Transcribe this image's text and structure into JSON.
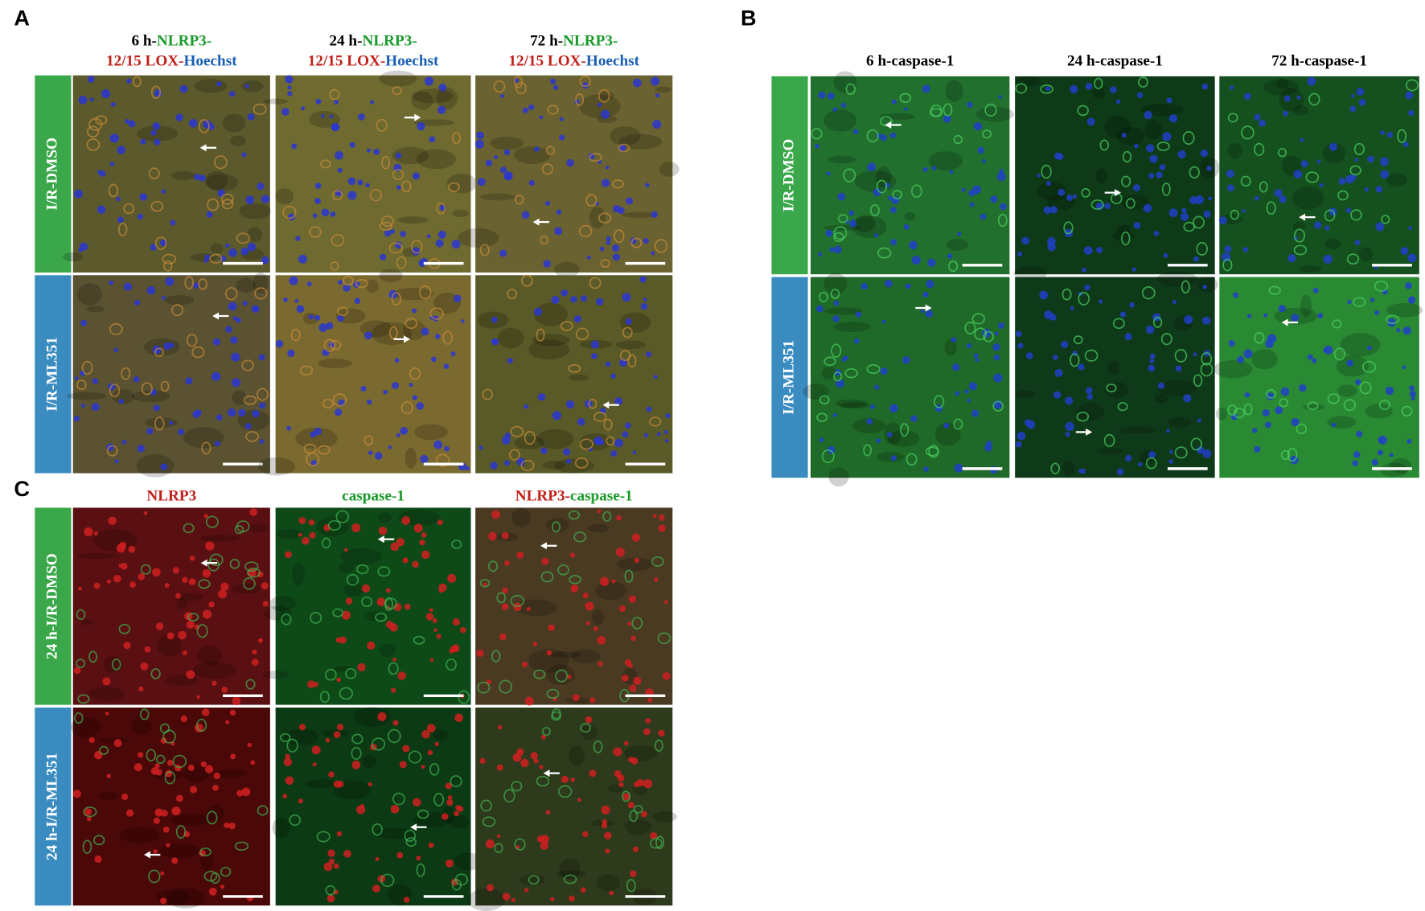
{
  "panels": [
    {
      "letter": "A",
      "columns": [
        {
          "lines": [
            [
              {
                "text": "6 h-",
                "color": "#000000"
              },
              {
                "text": "NLRP3-",
                "color": "#1a9a2a"
              }
            ],
            [
              {
                "text": "12/15 LOX-",
                "color": "#c0201a"
              },
              {
                "text": "Hoechst",
                "color": "#1a5fb4"
              }
            ]
          ]
        },
        {
          "lines": [
            [
              {
                "text": "24 h-",
                "color": "#000000"
              },
              {
                "text": "NLRP3-",
                "color": "#1a9a2a"
              }
            ],
            [
              {
                "text": "12/15 LOX-",
                "color": "#c0201a"
              },
              {
                "text": "Hoechst",
                "color": "#1a5fb4"
              }
            ]
          ]
        },
        {
          "lines": [
            [
              {
                "text": "72 h-",
                "color": "#000000"
              },
              {
                "text": "NLRP3-",
                "color": "#1a9a2a"
              }
            ],
            [
              {
                "text": "12/15 LOX-",
                "color": "#c0201a"
              },
              {
                "text": "Hoechst",
                "color": "#1a5fb4"
              }
            ]
          ]
        }
      ],
      "rows": [
        "I/R-DMSO",
        "I/R-ML351"
      ]
    },
    {
      "letter": "B",
      "columns": [
        {
          "lines": [
            [
              {
                "text": "6 h-caspase-1",
                "color": "#000000"
              }
            ]
          ]
        },
        {
          "lines": [
            [
              {
                "text": "24 h-caspase-1",
                "color": "#000000"
              }
            ]
          ]
        },
        {
          "lines": [
            [
              {
                "text": "72 h-caspase-1",
                "color": "#000000"
              }
            ]
          ]
        }
      ],
      "rows": [
        "I/R-DMSO",
        "I/R-ML351"
      ]
    },
    {
      "letter": "C",
      "columns": [
        {
          "lines": [
            [
              {
                "text": "NLRP3",
                "color": "#c0201a"
              }
            ]
          ]
        },
        {
          "lines": [
            [
              {
                "text": "caspase-1",
                "color": "#1a9a2a"
              }
            ]
          ]
        },
        {
          "lines": [
            [
              {
                "text": "NLRP3-",
                "color": "#c0201a"
              },
              {
                "text": "caspase-1",
                "color": "#1a9a2a"
              }
            ]
          ]
        }
      ],
      "rows": [
        "24 h-I/R-DMSO",
        "24 h-I/R-ML351"
      ]
    }
  ]
}
